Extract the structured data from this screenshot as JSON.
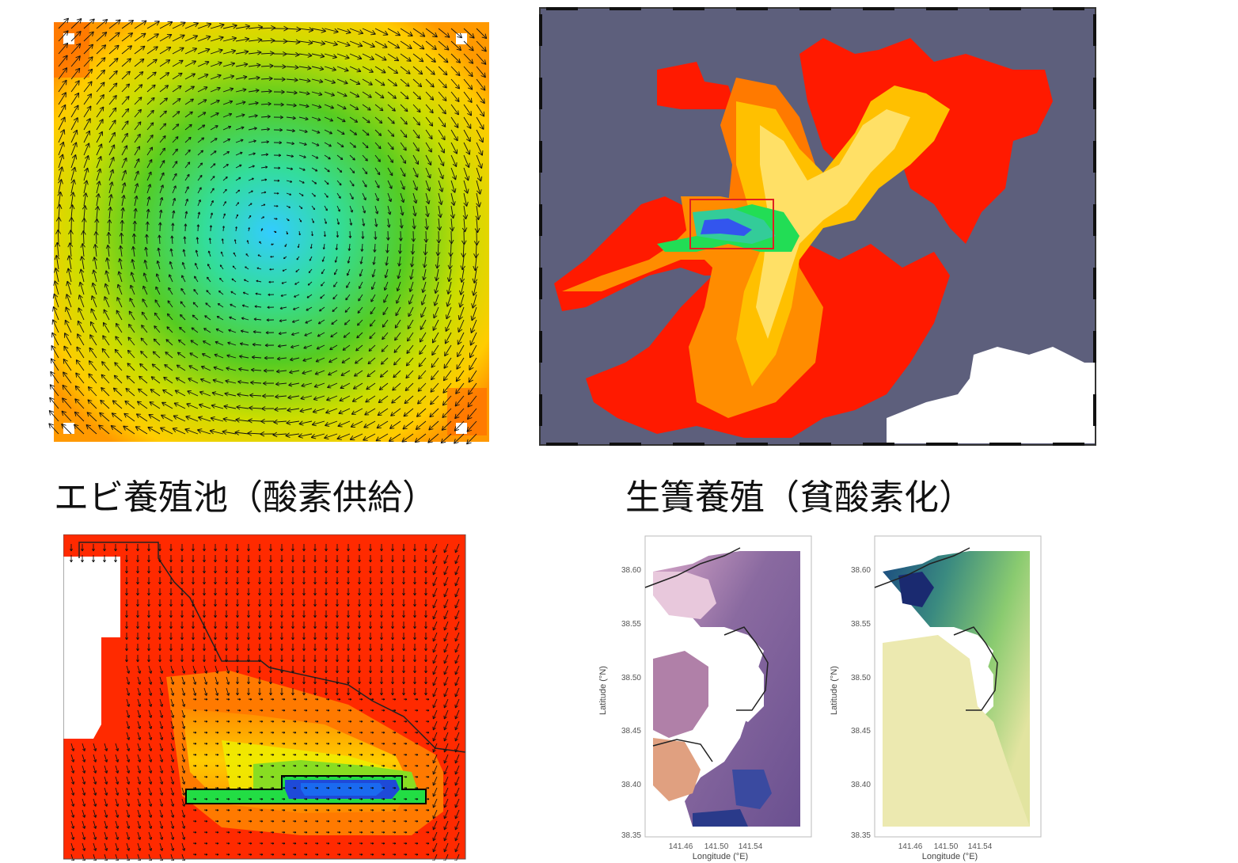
{
  "captions": {
    "shrimp_pond": "エビ養殖池（酸素供給）",
    "cage_culture": "生簀養殖（貧酸素化）"
  },
  "maps": {
    "lat_ticks": [
      "38.60",
      "38.55",
      "38.50",
      "38.45",
      "38.40",
      "38.35"
    ],
    "lon_ticks": [
      "141.46",
      "141.50",
      "141.54"
    ],
    "lat_label": "Latitude (°N)",
    "lon_label": "Longitude (°E)"
  },
  "colors": {
    "land": "#5d5f7c",
    "highlight_box": "#e02020",
    "hot": "#ff2a00",
    "cool": "#33ccff"
  }
}
